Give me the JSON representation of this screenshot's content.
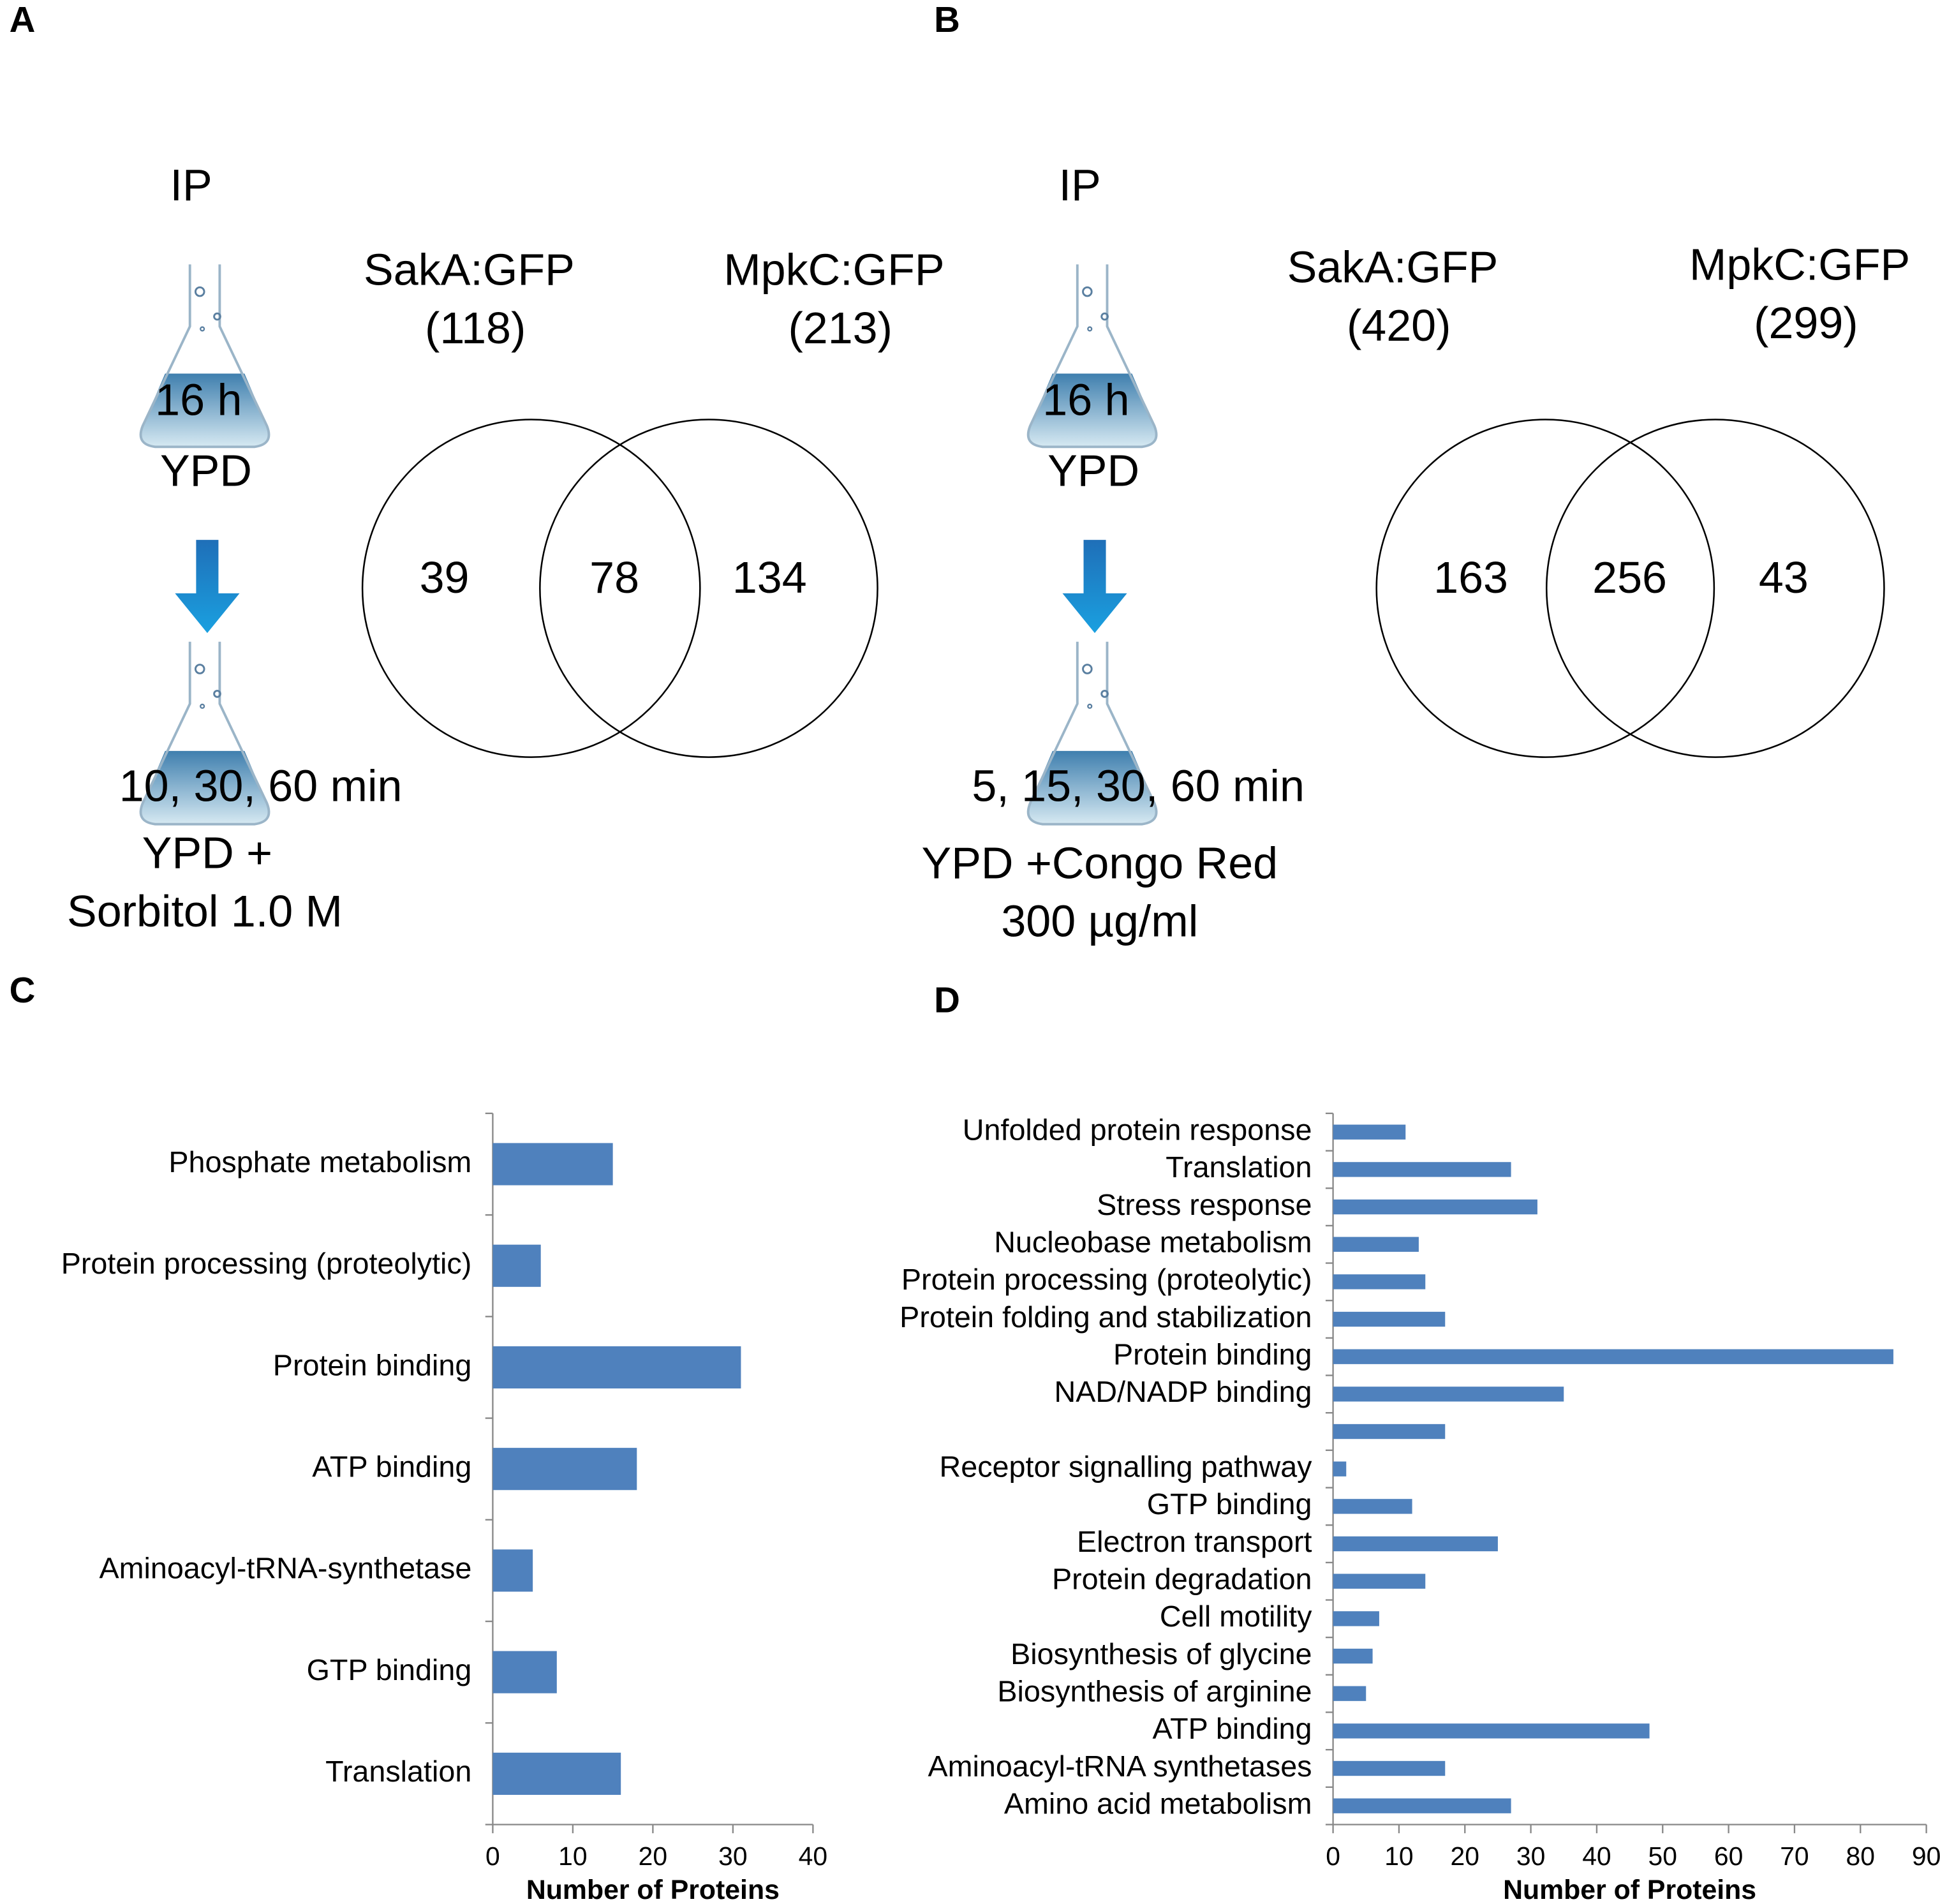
{
  "panels": [
    {
      "label": "A",
      "ip": "IP",
      "time1": "16 h",
      "medium1": "YPD",
      "time2": "10, 30, 60 min",
      "medium2": [
        "YPD +",
        "Sorbitol 1.0 M"
      ],
      "venn": {
        "sets": [
          {
            "name": "SakA:GFP",
            "total": "(118)"
          },
          {
            "name": "MpkC:GFP",
            "total": "(213)"
          }
        ],
        "left_only": 39,
        "both": 78,
        "right_only": 134
      }
    },
    {
      "label": "B",
      "ip": "IP",
      "time1": "16 h",
      "medium1": "YPD",
      "time2": "5, 15, 30, 60 min",
      "medium2": [
        "YPD +Congo Red",
        "300 µg/ml"
      ],
      "venn": {
        "sets": [
          {
            "name": "SakA:GFP",
            "total": "(420)"
          },
          {
            "name": "MpkC:GFP",
            "total": "(299)"
          }
        ],
        "left_only": 163,
        "both": 256,
        "right_only": 43
      }
    }
  ],
  "chart_data": [
    {
      "type": "bar",
      "orientation": "horizontal",
      "panel": "C",
      "categories": [
        "Phosphate metabolism",
        "Protein processing (proteolytic)",
        "Protein binding",
        "ATP binding",
        "Aminoacyl-tRNA-synthetase",
        "GTP binding",
        "Translation"
      ],
      "values": [
        15,
        6,
        31,
        18,
        5,
        8,
        16
      ],
      "color": "#4f81bd",
      "xlabel": "Number of Proteins",
      "xlim": [
        0,
        40
      ],
      "xticks": [
        0,
        10,
        20,
        30,
        40
      ]
    },
    {
      "type": "bar",
      "orientation": "horizontal",
      "panel": "D",
      "categories": [
        "Unfolded protein response",
        "Translation",
        "Stress response",
        "Nucleobase metabolism",
        "Protein processing (proteolytic)",
        "Protein folding and stabilization",
        "Protein binding",
        "NAD/NADP binding",
        null,
        "Receptor signalling pathway",
        "GTP binding",
        "Electron transport",
        "Protein degradation",
        "Cell motility",
        "Biosynthesis of glycine",
        "Biosynthesis of arginine",
        "ATP binding",
        "Aminoacyl-tRNA synthetases",
        "Amino acid metabolism"
      ],
      "values": [
        11,
        27,
        31,
        13,
        14,
        17,
        85,
        35,
        17,
        2,
        12,
        25,
        14,
        7,
        6,
        5,
        48,
        17,
        27
      ],
      "color": "#4f81bd",
      "xlabel": "Number of Proteins",
      "xlim": [
        0,
        90
      ],
      "xticks": [
        0,
        10,
        20,
        30,
        40,
        50,
        60,
        70,
        80,
        90
      ]
    }
  ]
}
